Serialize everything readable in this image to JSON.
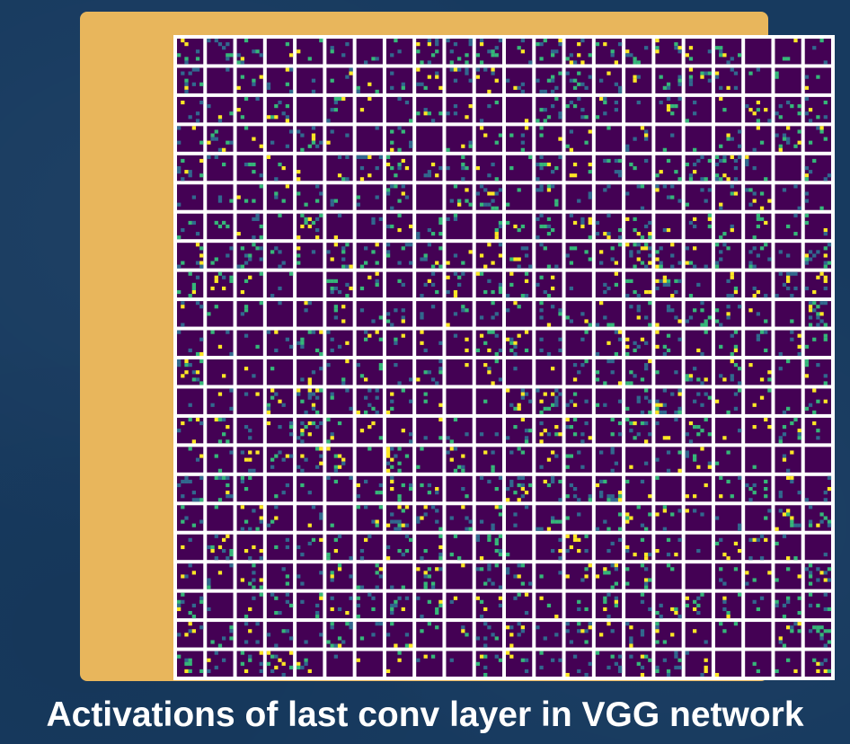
{
  "caption": "Activations of last conv layer in VGG network",
  "figure": {
    "grid_rows": 22,
    "grid_cols": 22,
    "tile_pixels": 7,
    "colormap": [
      "#440154",
      "#31688e",
      "#35b779",
      "#fde725"
    ],
    "frame_color": "#e8b65c",
    "background_color": "#173a5f",
    "grid_line_color": "#ffffff"
  }
}
